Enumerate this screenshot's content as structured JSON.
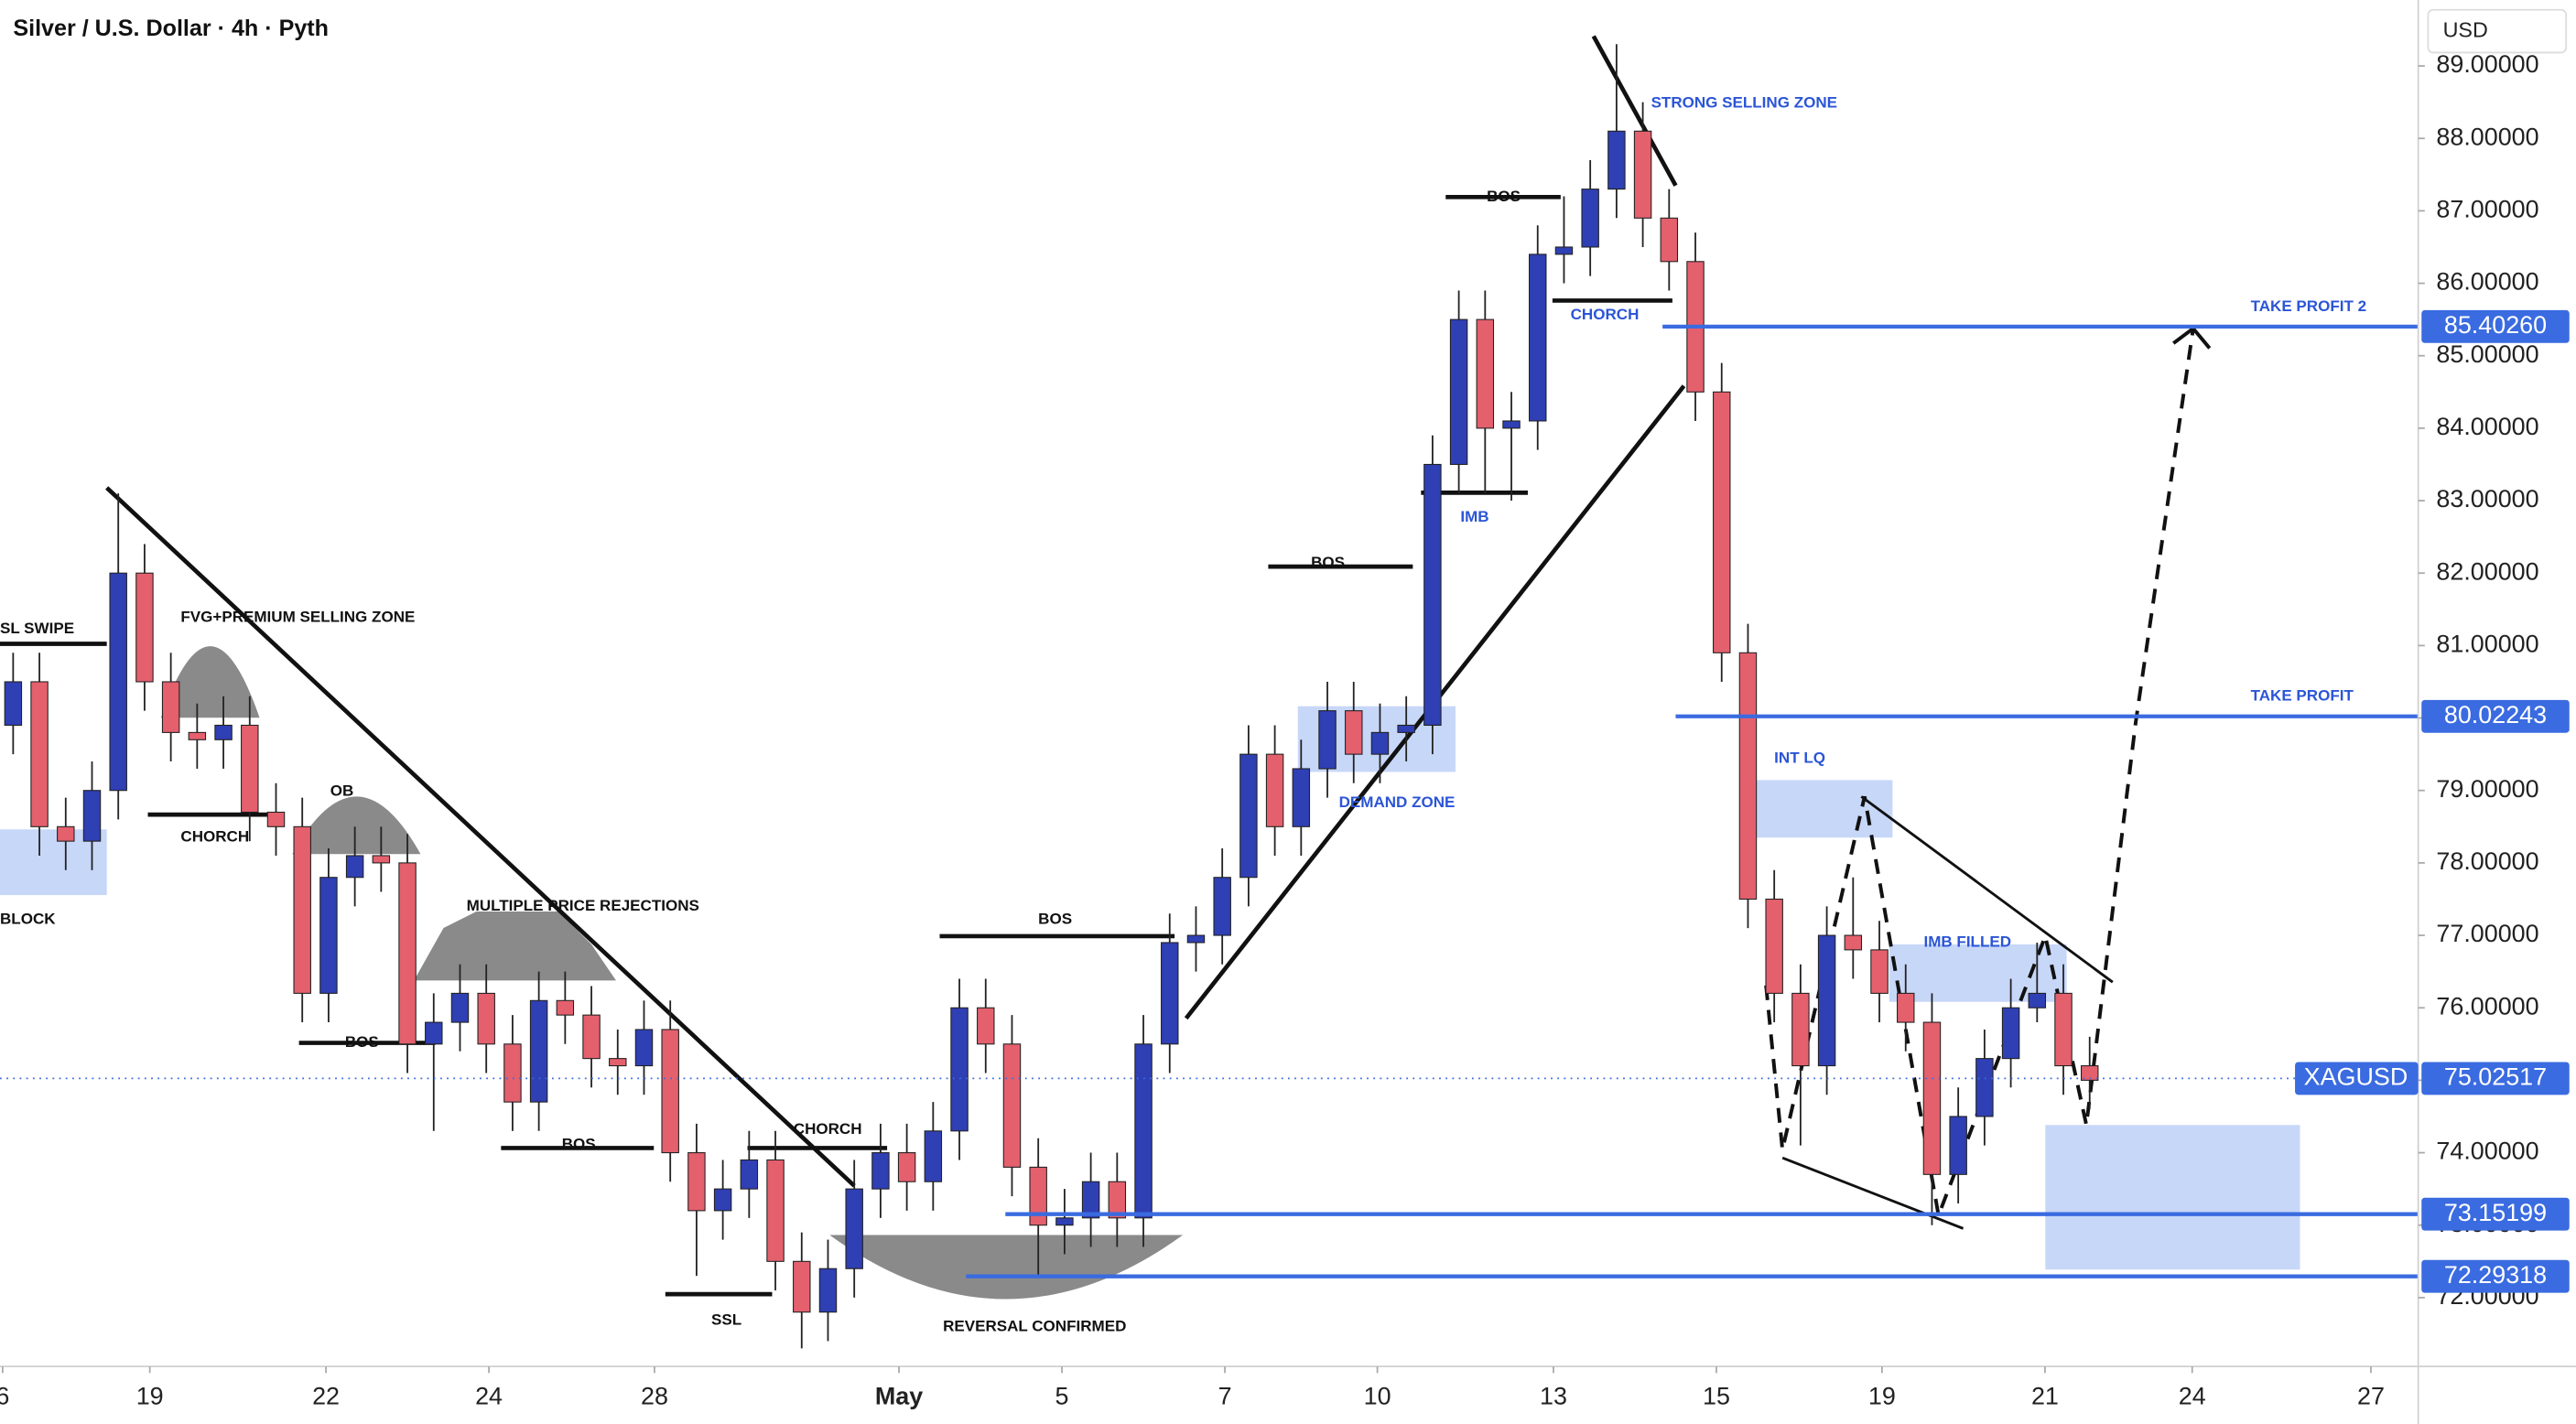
{
  "chart_data": {
    "type": "candlestick",
    "title": "Silver / U.S. Dollar · 4h · Pyth",
    "currency": "USD",
    "up_color": "#2f3fb4",
    "down_color": "#e4606d",
    "level_color": "#3a6be0",
    "open": [
      79.9,
      80.5,
      78.5,
      78.3,
      79.0,
      82.0,
      80.5,
      79.8,
      79.7,
      79.9,
      78.7,
      78.5,
      76.2,
      77.8,
      78.1,
      78.0,
      75.5,
      75.8,
      76.2,
      75.5,
      74.7,
      76.1,
      75.9,
      75.3,
      75.2,
      75.7,
      74.0,
      73.2,
      73.5,
      73.9,
      72.5,
      71.8,
      72.4,
      73.5,
      74.0,
      73.6,
      74.3,
      76.0,
      75.5,
      73.8,
      73.0,
      73.1,
      73.6,
      73.1,
      75.5,
      76.9,
      77.0,
      77.8,
      79.5,
      78.5,
      79.3,
      80.1,
      79.5,
      79.8,
      79.9,
      83.5,
      85.5,
      84.0,
      84.1,
      86.4,
      86.5,
      87.3,
      88.1,
      86.9,
      86.3,
      84.5,
      80.9,
      77.5,
      76.2,
      75.2,
      77.0,
      76.8,
      76.2,
      75.8,
      73.7,
      74.5,
      75.3,
      76.0,
      76.2,
      75.2
    ],
    "high": [
      80.9,
      80.9,
      78.9,
      79.4,
      83.1,
      82.4,
      80.9,
      80.2,
      80.3,
      80.3,
      79.1,
      78.9,
      78.2,
      78.5,
      78.5,
      78.4,
      76.2,
      76.6,
      76.6,
      75.9,
      76.5,
      76.5,
      76.3,
      75.7,
      76.1,
      76.1,
      74.4,
      73.9,
      74.3,
      74.3,
      72.9,
      72.8,
      73.9,
      74.4,
      74.4,
      74.7,
      76.4,
      76.4,
      75.9,
      74.2,
      73.5,
      74.0,
      74.0,
      75.9,
      77.3,
      77.4,
      78.2,
      79.9,
      79.9,
      79.7,
      80.5,
      80.5,
      80.2,
      80.3,
      83.9,
      85.9,
      85.9,
      84.5,
      86.8,
      87.2,
      87.7,
      89.3,
      88.5,
      87.3,
      86.7,
      84.9,
      81.3,
      77.9,
      76.6,
      77.4,
      77.8,
      77.2,
      76.6,
      76.2,
      74.9,
      75.7,
      76.4,
      76.9,
      76.6,
      75.6
    ],
    "low": [
      79.5,
      78.1,
      77.9,
      77.9,
      78.6,
      80.1,
      79.4,
      79.3,
      79.3,
      78.3,
      78.1,
      75.8,
      75.8,
      77.4,
      77.6,
      75.1,
      74.3,
      75.4,
      75.1,
      74.3,
      74.3,
      75.5,
      74.9,
      74.8,
      74.8,
      73.6,
      72.3,
      72.8,
      73.1,
      72.1,
      71.3,
      71.4,
      72.0,
      73.1,
      73.2,
      73.2,
      73.9,
      75.1,
      73.4,
      72.3,
      72.6,
      72.7,
      72.7,
      72.7,
      75.1,
      76.5,
      76.6,
      77.4,
      78.1,
      78.1,
      78.9,
      79.1,
      79.1,
      79.4,
      79.5,
      83.1,
      83.1,
      83.0,
      83.7,
      86.0,
      86.1,
      86.9,
      86.5,
      85.9,
      84.1,
      80.5,
      77.1,
      75.8,
      74.1,
      74.8,
      76.4,
      75.8,
      75.4,
      73.0,
      73.3,
      74.1,
      74.9,
      75.8,
      74.8,
      74.6
    ],
    "close": [
      80.5,
      78.5,
      78.3,
      79.0,
      82.0,
      80.5,
      79.8,
      79.7,
      79.9,
      78.7,
      78.5,
      76.2,
      77.8,
      78.1,
      78.0,
      75.5,
      75.8,
      76.2,
      75.5,
      74.7,
      76.1,
      75.9,
      75.3,
      75.2,
      75.7,
      74.0,
      73.2,
      73.5,
      73.9,
      72.5,
      71.8,
      72.4,
      73.5,
      74.0,
      73.6,
      74.3,
      76.0,
      75.5,
      73.8,
      73.0,
      73.1,
      73.6,
      73.1,
      75.5,
      76.9,
      77.0,
      77.8,
      79.5,
      78.5,
      79.3,
      80.1,
      79.5,
      79.8,
      79.9,
      83.5,
      85.5,
      84.0,
      84.1,
      86.4,
      86.5,
      87.3,
      88.1,
      86.9,
      86.3,
      84.5,
      80.9,
      77.5,
      76.2,
      75.2,
      77.0,
      76.8,
      76.2,
      75.8,
      73.7,
      74.5,
      75.3,
      76.0,
      76.2,
      75.2,
      75.0
    ],
    "xlim": [
      0,
      92
    ],
    "xticks": [
      {
        "value": 0.1,
        "label": "6"
      },
      {
        "value": 5.7,
        "label": "19"
      },
      {
        "value": 12.4,
        "label": "22"
      },
      {
        "value": 18.6,
        "label": "24"
      },
      {
        "value": 24.9,
        "label": "28"
      },
      {
        "value": 34.2,
        "label": "May"
      },
      {
        "value": 40.4,
        "label": "5"
      },
      {
        "value": 46.6,
        "label": "7"
      },
      {
        "value": 52.4,
        "label": "10"
      },
      {
        "value": 59.1,
        "label": "13"
      },
      {
        "value": 65.3,
        "label": "15"
      },
      {
        "value": 71.6,
        "label": "19"
      },
      {
        "value": 77.8,
        "label": "21"
      },
      {
        "value": 83.4,
        "label": "24"
      },
      {
        "value": 90.2,
        "label": "27"
      }
    ],
    "ylim": [
      71.05,
      89.91
    ],
    "yticks": [
      {
        "value": 72,
        "label": "72.00000"
      },
      {
        "value": 73,
        "label": "73.00000"
      },
      {
        "value": 74,
        "label": "74.00000"
      },
      {
        "value": 75,
        "label": "75.00000"
      },
      {
        "value": 76,
        "label": "76.00000"
      },
      {
        "value": 77,
        "label": "77.00000"
      },
      {
        "value": 78,
        "label": "78.00000"
      },
      {
        "value": 79,
        "label": "79.00000"
      },
      {
        "value": 80,
        "label": "80.00000"
      },
      {
        "value": 81,
        "label": "81.00000"
      },
      {
        "value": 82,
        "label": "82.00000"
      },
      {
        "value": 83,
        "label": "83.00000"
      },
      {
        "value": 84,
        "label": "84.00000"
      },
      {
        "value": 85,
        "label": "85.00000"
      },
      {
        "value": 86,
        "label": "86.00000"
      },
      {
        "value": 87,
        "label": "87.00000"
      },
      {
        "value": 88,
        "label": "88.00000"
      },
      {
        "value": 89,
        "label": "89.00000"
      }
    ],
    "levels": [
      {
        "value": 85.4026,
        "label": "85.40260",
        "text": "TAKE PROFIT 2"
      },
      {
        "value": 80.02243,
        "label": "80.02243",
        "text": "TAKE PROFIT"
      },
      {
        "value": 73.15199,
        "label": "73.15199"
      },
      {
        "value": 72.29318,
        "label": "72.29318"
      }
    ],
    "last_price": {
      "value": 75.02517,
      "label": "75.02517",
      "text": "XAGUSD"
    },
    "annotations": [
      "SL SWIPE",
      "FVG+PREMIUM SELLING ZONE",
      "CHORCH",
      "OB",
      "MULTIPLE PRICE REJECTIONS",
      "BOS",
      "BOS",
      "CHORCH",
      "SSL",
      "BLOCK",
      "REVERSAL CONFIRMED",
      "BOS",
      "BOS",
      "DEMAND ZONE",
      "IMB",
      "BOS",
      "CHORCH",
      "STRONG SELLING ZONE",
      "INT LQ",
      "IMB FILLED"
    ]
  }
}
